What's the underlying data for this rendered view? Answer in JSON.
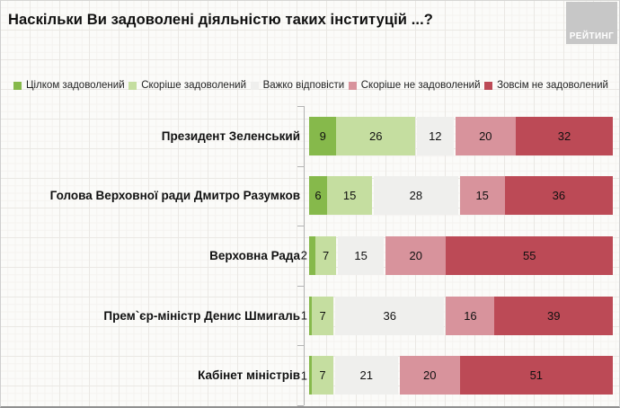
{
  "title": "Наскільки Ви задоволені діяльністю таких інституцій ...?",
  "logo": {
    "text": "РЕЙТИНГ"
  },
  "colors": {
    "satisfied_full": "#86B94B",
    "satisfied_rather": "#C5DEA0",
    "hard_to_answer": "#EFEFED",
    "dissatisfied_rather": "#D8939C",
    "dissatisfied_full": "#BC4A56",
    "axis": "#b3b3b3",
    "logo_bg": "#c7c7c7"
  },
  "chart_data": {
    "type": "bar",
    "orientation": "horizontal",
    "stacked": true,
    "unit": "percent",
    "title": "Наскільки Ви задоволені діяльністю таких інституцій ...?",
    "legend_position": "top",
    "value_labels": true,
    "grid": true,
    "xlim": [
      0,
      100
    ],
    "categories": [
      "Президент Зеленський",
      "Голова Верховної ради Дмитро Разумков",
      "Верховна Рада",
      "Прем`єр-міністр Денис Шмигаль",
      "Кабінет міністрів"
    ],
    "series": [
      {
        "name": "Цілком задоволений",
        "color": "#86B94B",
        "values": [
          9,
          6,
          2,
          1,
          1
        ]
      },
      {
        "name": "Скоріше задоволений",
        "color": "#C5DEA0",
        "values": [
          26,
          15,
          7,
          7,
          7
        ]
      },
      {
        "name": "Важко відповісти",
        "color": "#EFEFED",
        "values": [
          12,
          28,
          15,
          36,
          21
        ]
      },
      {
        "name": "Скоріше не задоволений",
        "color": "#D8939C",
        "values": [
          20,
          15,
          20,
          16,
          20
        ]
      },
      {
        "name": "Зовсім не задоволений",
        "color": "#BC4A56",
        "values": [
          32,
          36,
          55,
          39,
          51
        ]
      }
    ]
  }
}
